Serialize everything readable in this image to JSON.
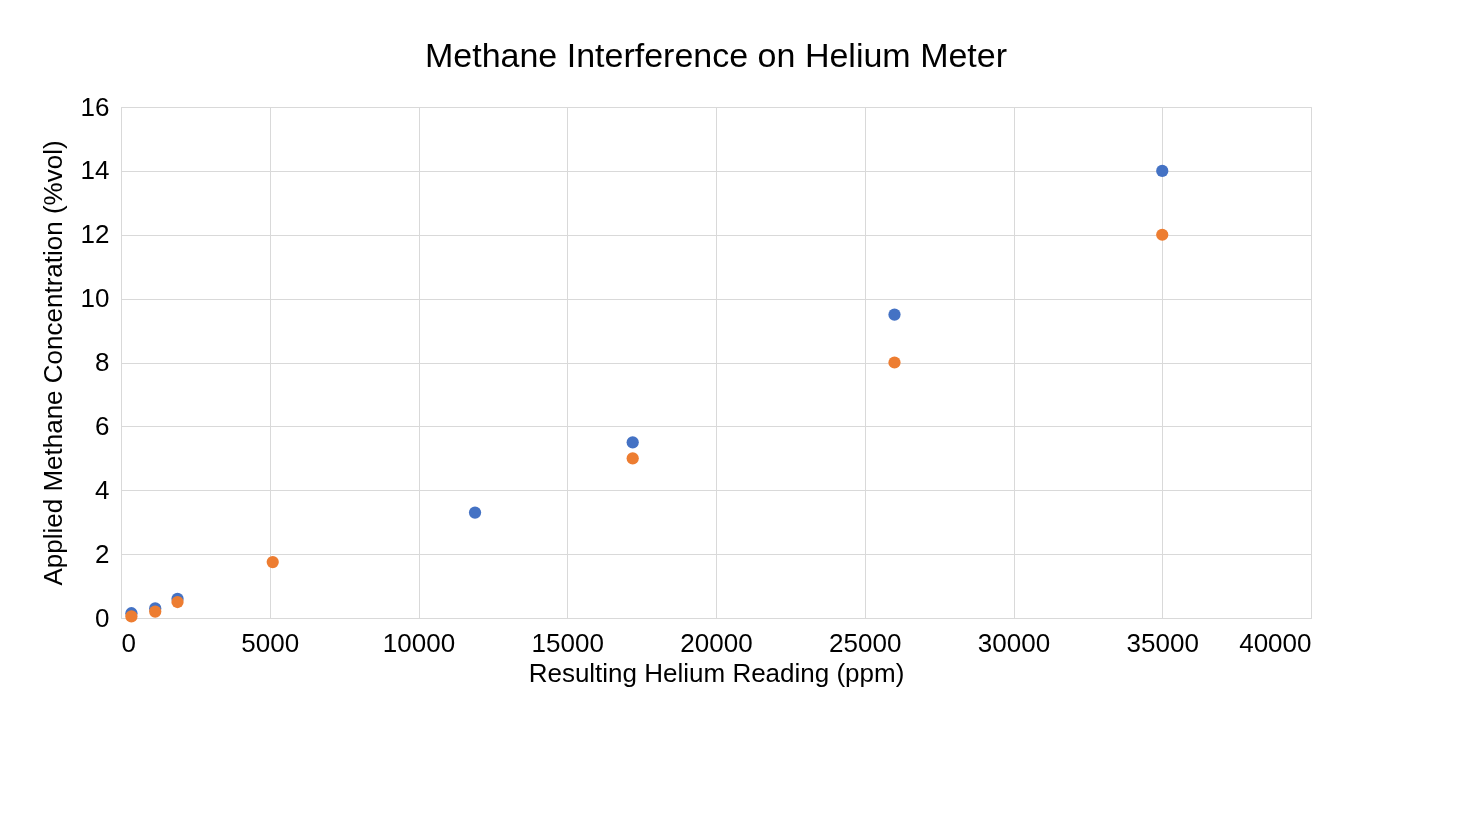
{
  "chart_data": {
    "type": "scatter",
    "title": "Methane Interference on Helium Meter",
    "xlabel": "Resulting Helium Reading (ppm)",
    "ylabel": "Applied Methane Concentration (%vol)",
    "xlim": [
      0,
      40000
    ],
    "xticks": [
      0,
      5000,
      10000,
      15000,
      20000,
      25000,
      30000,
      35000,
      40000
    ],
    "ylim": [
      0,
      16
    ],
    "yticks": [
      0,
      2,
      4,
      6,
      8,
      10,
      12,
      14,
      16
    ],
    "grid": true,
    "series": [
      {
        "color": "#4472c4",
        "x": [
          350,
          1150,
          1900,
          11900,
          17200,
          26000,
          35000
        ],
        "values": [
          0.15,
          0.3,
          0.6,
          3.3,
          5.5,
          9.5,
          14
        ]
      },
      {
        "color": "#ed7d31",
        "x": [
          350,
          1150,
          1900,
          5100,
          17200,
          26000,
          35000
        ],
        "values": [
          0.05,
          0.2,
          0.5,
          1.75,
          5,
          8,
          12
        ]
      }
    ]
  }
}
